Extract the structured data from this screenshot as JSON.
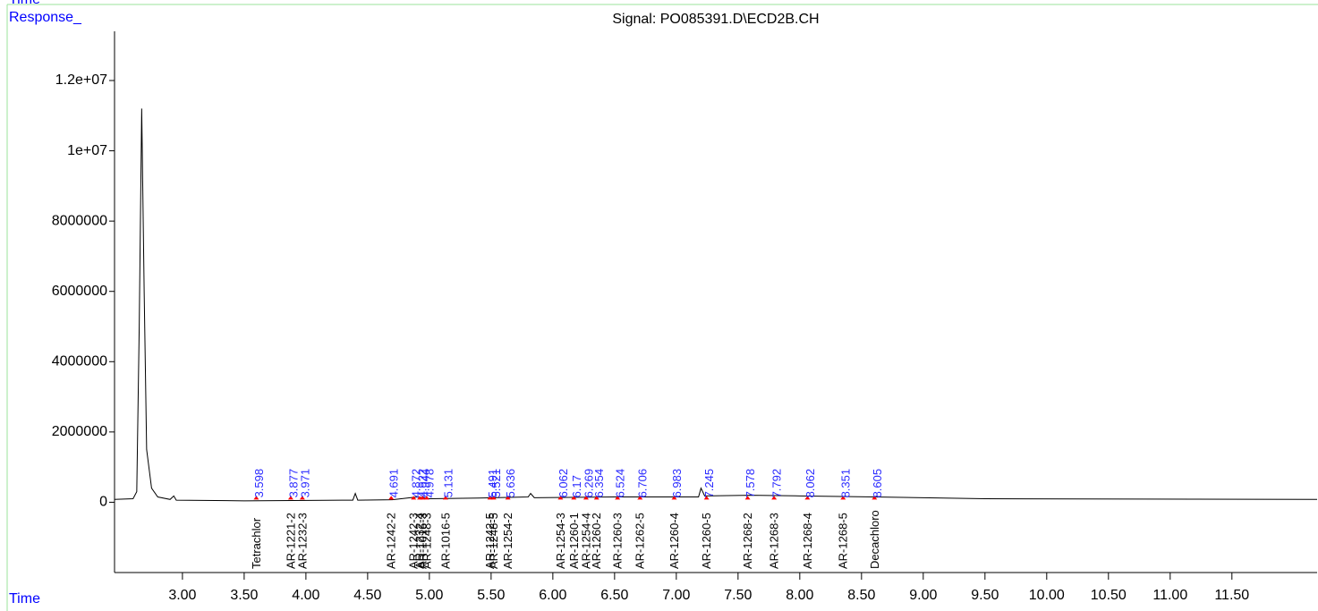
{
  "chart_data": {
    "type": "line",
    "corner_label": "Time",
    "title": "Signal: PO085391.D\\ECD2B.CH",
    "y_label": "Response_",
    "x_label": "Time",
    "color": "#000000",
    "x": [
      2.45,
      2.6,
      2.63,
      2.65,
      2.67,
      2.69,
      2.71,
      2.75,
      2.8,
      2.9,
      2.93,
      2.95,
      3.5,
      4.38,
      4.4,
      4.42,
      4.7,
      4.9,
      5.0,
      5.4,
      5.8,
      5.82,
      5.85,
      6.5,
      7.18,
      7.2,
      7.23,
      7.6,
      8.0,
      8.6,
      9.5,
      12.19
    ],
    "values": [
      80000,
      100000,
      300000,
      5000000,
      11200000,
      6000000,
      1500000,
      400000,
      150000,
      80000,
      180000,
      60000,
      40000,
      60000,
      250000,
      60000,
      70000,
      150000,
      100000,
      120000,
      150000,
      250000,
      130000,
      150000,
      150000,
      400000,
      180000,
      200000,
      180000,
      150000,
      100000,
      80000
    ],
    "xlim": [
      2.45,
      12.19
    ],
    "ylim": [
      -2000000,
      13400000
    ],
    "xticks": [
      {
        "value": 3,
        "label": "3.00"
      },
      {
        "value": 3.5,
        "label": "3.50"
      },
      {
        "value": 4,
        "label": "4.00"
      },
      {
        "value": 4.5,
        "label": "4.50"
      },
      {
        "value": 5,
        "label": "5.00"
      },
      {
        "value": 5.5,
        "label": "5.50"
      },
      {
        "value": 6,
        "label": "6.00"
      },
      {
        "value": 6.5,
        "label": "6.50"
      },
      {
        "value": 7,
        "label": "7.00"
      },
      {
        "value": 7.5,
        "label": "7.50"
      },
      {
        "value": 8,
        "label": "8.00"
      },
      {
        "value": 8.5,
        "label": "8.50"
      },
      {
        "value": 9,
        "label": "9.00"
      },
      {
        "value": 9.5,
        "label": "9.50"
      },
      {
        "value": 10,
        "label": "10.00"
      },
      {
        "value": 10.5,
        "label": "10.50"
      },
      {
        "value": 11,
        "label": "11.00"
      },
      {
        "value": 11.5,
        "label": "11.50"
      }
    ],
    "yticks": [
      0,
      2000000,
      4000000,
      6000000,
      8000000,
      {
        "value": 10000000,
        "label": "1e+07"
      },
      {
        "value": 12000000,
        "label": "1.2e+07"
      }
    ],
    "peaks": [
      {
        "rt": 3.598,
        "compound": "Tetrachlor"
      },
      {
        "rt": 3.877,
        "compound": "AR-1221-2"
      },
      {
        "rt": 3.971,
        "compound": "AR-1232-3"
      },
      {
        "rt": 4.691,
        "compound": "AR-1242-2"
      },
      {
        "rt": 4.872,
        "compound": "AR-1242-3"
      },
      {
        "rt": 4.922,
        "compound": "AR-1232-4"
      },
      {
        "rt": 4.944,
        "compound": "AR-1016-3"
      },
      {
        "rt": 4.978,
        "compound": "AR-1248-3"
      },
      {
        "rt": 5.131,
        "compound": "AR-1016-5"
      },
      {
        "rt": 5.491,
        "compound": "AR-1242-5"
      },
      {
        "rt": 5.521,
        "compound": "AR-1248-5"
      },
      {
        "rt": 5.636,
        "compound": "AR-1254-2"
      },
      {
        "rt": 6.062,
        "compound": "AR-1254-3"
      },
      {
        "rt": 6.17,
        "compound": "AR-1260-1"
      },
      {
        "rt": 6.269,
        "compound": "AR-1254-4"
      },
      {
        "rt": 6.354,
        "compound": "AR-1260-2"
      },
      {
        "rt": 6.524,
        "compound": "AR-1260-3"
      },
      {
        "rt": 6.706,
        "compound": "AR-1262-5"
      },
      {
        "rt": 6.983,
        "compound": "AR-1260-4"
      },
      {
        "rt": 7.245,
        "compound": "AR-1260-5"
      },
      {
        "rt": 7.578,
        "compound": "AR-1268-2"
      },
      {
        "rt": 7.792,
        "compound": "AR-1268-3"
      },
      {
        "rt": 8.062,
        "compound": "AR-1268-4"
      },
      {
        "rt": 8.351,
        "compound": "AR-1268-5"
      },
      {
        "rt": 8.605,
        "compound": "Decachloro"
      }
    ]
  }
}
